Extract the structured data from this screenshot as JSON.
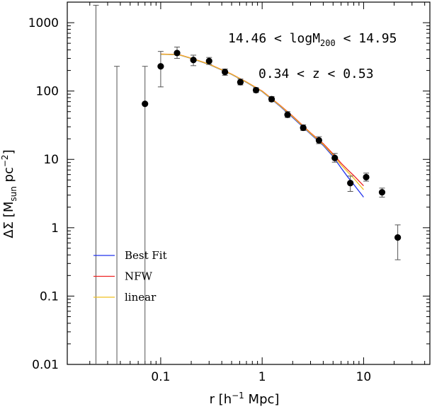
{
  "chart_data": {
    "type": "scatter",
    "title": "",
    "xlabel_parts": {
      "main": "r [h",
      "sup": "−1",
      "rest": " Mpc]"
    },
    "ylabel_parts": {
      "pre": "ΔΣ  [M",
      "sub": "sun",
      "mid": " pc",
      "sup": "−2",
      "post": "]"
    },
    "xscale": "log",
    "yscale": "log",
    "xlim": [
      0.012,
      45
    ],
    "ylim": [
      0.01,
      2000
    ],
    "x_ticks": [
      {
        "value": 0.1,
        "label": "0.1"
      },
      {
        "value": 1,
        "label": "1"
      },
      {
        "value": 10,
        "label": "10"
      }
    ],
    "y_ticks": [
      {
        "value": 0.01,
        "label": "0.01"
      },
      {
        "value": 0.1,
        "label": "0.1"
      },
      {
        "value": 1,
        "label": "1"
      },
      {
        "value": 10,
        "label": "10"
      },
      {
        "value": 100,
        "label": "100"
      },
      {
        "value": 1000,
        "label": "1000"
      }
    ],
    "annotations": {
      "mass_range": {
        "pre": "14.46 < logM",
        "sub": "200",
        "post": " < 14.95"
      },
      "z_range": "0.34 < z < 0.53"
    },
    "legend": {
      "placement": "lower-left",
      "entries": [
        {
          "label": "Best Fit",
          "color": "#2233ee"
        },
        {
          "label": "NFW",
          "color": "#ee2222"
        },
        {
          "label": "linear",
          "color": "#f0c020"
        }
      ]
    },
    "data_points": [
      {
        "x": 0.07,
        "y": 65,
        "err_low": 0.01,
        "err_high": 230
      },
      {
        "x": 0.1,
        "y": 230,
        "err_low": 115,
        "err_high": 380
      },
      {
        "x": 0.145,
        "y": 360,
        "err_low": 300,
        "err_high": 440
      },
      {
        "x": 0.21,
        "y": 285,
        "err_low": 235,
        "err_high": 335
      },
      {
        "x": 0.3,
        "y": 275,
        "err_low": 245,
        "err_high": 310
      },
      {
        "x": 0.43,
        "y": 190,
        "err_low": 170,
        "err_high": 210
      },
      {
        "x": 0.61,
        "y": 135,
        "err_low": 123,
        "err_high": 150
      },
      {
        "x": 0.87,
        "y": 103,
        "err_low": 95,
        "err_high": 112
      },
      {
        "x": 1.24,
        "y": 76,
        "err_low": 70,
        "err_high": 83
      },
      {
        "x": 1.78,
        "y": 45,
        "err_low": 41,
        "err_high": 50
      },
      {
        "x": 2.54,
        "y": 29,
        "err_low": 26.5,
        "err_high": 32
      },
      {
        "x": 3.63,
        "y": 19,
        "err_low": 17,
        "err_high": 21.5
      },
      {
        "x": 5.2,
        "y": 10.5,
        "err_low": 9.1,
        "err_high": 12.2
      },
      {
        "x": 7.4,
        "y": 4.5,
        "err_low": 3.4,
        "err_high": 5.7
      },
      {
        "x": 10.6,
        "y": 5.5,
        "err_low": 4.8,
        "err_high": 6.3
      },
      {
        "x": 15.2,
        "y": 3.3,
        "err_low": 2.8,
        "err_high": 3.8
      },
      {
        "x": 21.7,
        "y": 0.72,
        "err_low": 0.34,
        "err_high": 1.1
      }
    ],
    "empty_bins": [
      {
        "x": 0.023,
        "err_low": 0.01,
        "err_high": 1800
      },
      {
        "x": 0.037,
        "err_low": 0.01,
        "err_high": 230
      }
    ],
    "series": [
      {
        "name": "Best Fit",
        "color": "#2233ee",
        "x": [
          0.1,
          0.15,
          0.2,
          0.3,
          0.5,
          0.7,
          1,
          1.5,
          2,
          3,
          4,
          5,
          6,
          7,
          8,
          10
        ],
        "y": [
          345,
          340,
          300,
          245,
          175,
          134,
          98,
          60,
          41,
          23.5,
          16,
          11,
          7.5,
          5.5,
          4.3,
          2.8
        ]
      },
      {
        "name": "NFW",
        "color": "#ee2222",
        "x": [
          0.1,
          0.15,
          0.2,
          0.3,
          0.5,
          0.7,
          1,
          1.5,
          2,
          3,
          4,
          5,
          6,
          7,
          8,
          10
        ],
        "y": [
          348,
          343,
          303,
          248,
          177,
          136,
          100,
          62,
          43,
          24.5,
          17,
          12,
          8.8,
          7,
          5.8,
          4.1
        ]
      },
      {
        "name": "linear",
        "color": "#f0c020",
        "x": [
          0.1,
          0.15,
          0.2,
          0.3,
          0.5,
          0.7,
          1,
          1.5,
          2,
          3,
          4,
          5,
          6,
          7,
          8,
          10
        ],
        "y": [
          346,
          341,
          301,
          246,
          176,
          135,
          99,
          61,
          42,
          24,
          16.5,
          11.5,
          8.3,
          6.5,
          5.3,
          3.6
        ]
      }
    ]
  }
}
